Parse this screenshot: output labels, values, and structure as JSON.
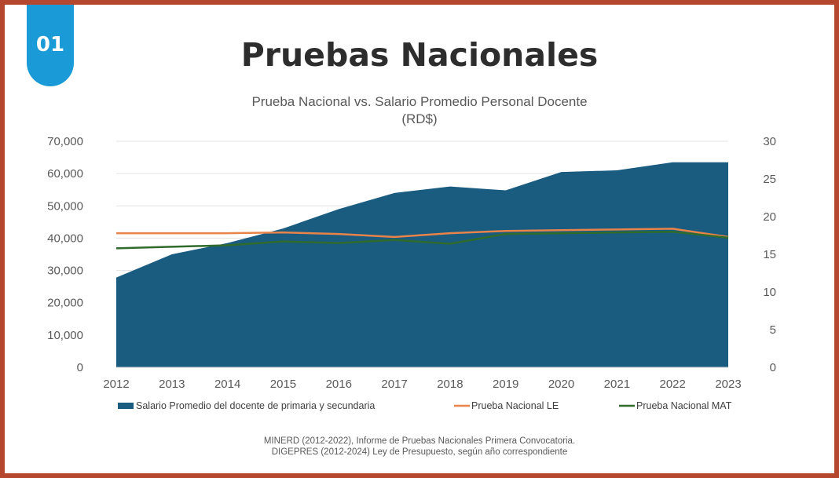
{
  "badge": {
    "number": "01"
  },
  "page_title": "Pruebas Nacionales",
  "chart_data": {
    "type": "area",
    "title": "Prueba Nacional vs. Salario Promedio Personal Docente",
    "subtitle": "(RD$)",
    "x": [
      "2012",
      "2013",
      "2014",
      "2015",
      "2016",
      "2017",
      "2018",
      "2019",
      "2020",
      "2021",
      "2022",
      "2023"
    ],
    "ylim_left": [
      0,
      70000
    ],
    "yticks_left": [
      "0",
      "10,000",
      "20,000",
      "30,000",
      "40,000",
      "50,000",
      "60,000",
      "70,000"
    ],
    "ylim_right": [
      0,
      30
    ],
    "yticks_right": [
      "0",
      "5",
      "10",
      "15",
      "20",
      "25",
      "30"
    ],
    "grid": true,
    "legend_position": "bottom",
    "series": [
      {
        "name": "Salario Promedio del docente de primaria y secundaria",
        "type": "area",
        "axis": "left",
        "color": "#1a5b80",
        "values": [
          27800,
          35000,
          38500,
          43000,
          49000,
          54000,
          56000,
          54800,
          60500,
          61000,
          63500,
          63500
        ]
      },
      {
        "name": "Prueba Nacional LE",
        "type": "line",
        "axis": "right",
        "color": "#e8834a",
        "values": [
          17.8,
          17.8,
          17.8,
          17.9,
          17.7,
          17.3,
          17.8,
          18.1,
          18.2,
          18.3,
          18.4,
          17.3
        ]
      },
      {
        "name": "Prueba Nacional MAT",
        "type": "line",
        "axis": "right",
        "color": "#2f6b2b",
        "values": [
          15.8,
          16.0,
          16.2,
          16.7,
          16.5,
          16.9,
          16.4,
          17.7,
          17.8,
          17.9,
          18.0,
          17.2
        ]
      }
    ]
  },
  "source": {
    "line1": "MINERD (2012-2022), Informe de Pruebas Nacionales Primera Convocatoria.",
    "line2": "DIGEPRES (2012-2024) Ley de Presupuesto, según año correspondiente"
  }
}
